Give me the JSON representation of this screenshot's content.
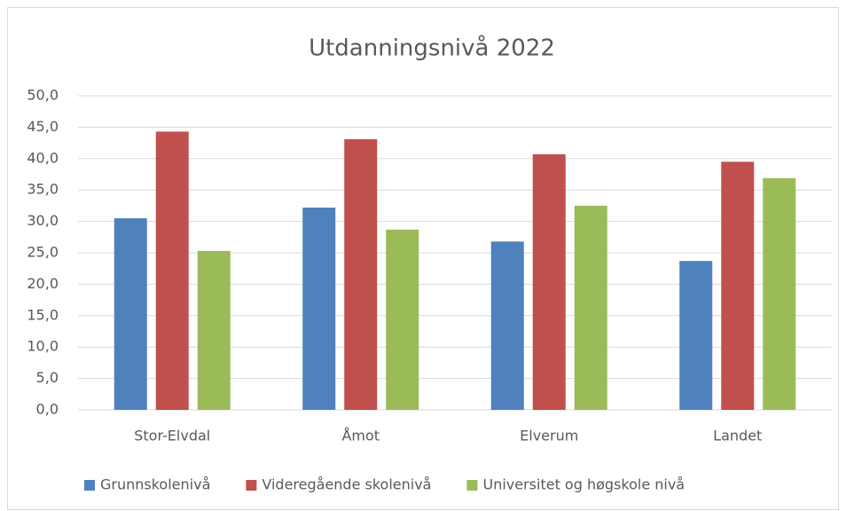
{
  "chart_data": {
    "type": "bar",
    "title": "Utdanningsnivå 2022",
    "categories": [
      "Stor-Elvdal",
      "Åmot",
      "Elverum",
      "Landet"
    ],
    "series": [
      {
        "name": "Grunnskolenivå",
        "color": "#4f81bd",
        "values": [
          30.5,
          32.2,
          26.8,
          23.7
        ]
      },
      {
        "name": "Videregående skolenivå",
        "color": "#c0504d",
        "values": [
          44.3,
          43.1,
          40.7,
          39.5
        ]
      },
      {
        "name": "Universitet og høgskole nivå",
        "color": "#9bbb59",
        "values": [
          25.3,
          28.7,
          32.5,
          36.9
        ]
      }
    ],
    "ylim": [
      0,
      50
    ],
    "yticks": [
      {
        "value": 0,
        "label": "0,0"
      },
      {
        "value": 5,
        "label": "5,0"
      },
      {
        "value": 10,
        "label": "10,0"
      },
      {
        "value": 15,
        "label": "15,0"
      },
      {
        "value": 20,
        "label": "20,0"
      },
      {
        "value": 25,
        "label": "25,0"
      },
      {
        "value": 30,
        "label": "30,0"
      },
      {
        "value": 35,
        "label": "35,0"
      },
      {
        "value": 40,
        "label": "40,0"
      },
      {
        "value": 45,
        "label": "45,0"
      },
      {
        "value": 50,
        "label": "50,0"
      }
    ],
    "grid": true,
    "legend": "bottom"
  }
}
